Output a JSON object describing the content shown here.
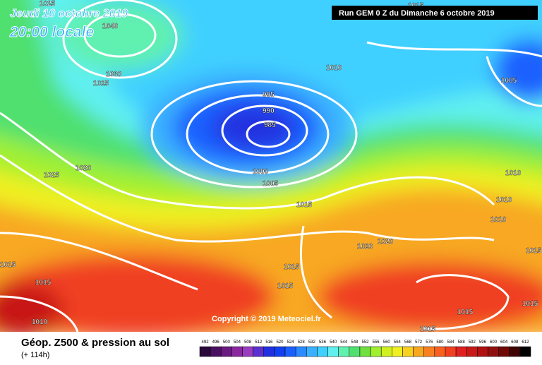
{
  "header": {
    "date": "Jeudi 10 octobre 2019",
    "time": "20:00 locale",
    "run": "Run GEM 0 Z du Dimanche 6 octobre 2019"
  },
  "copyright": "Copyright © 2019 Meteociel.fr",
  "isobars": [
    "1025",
    "1040",
    "1030",
    "1025",
    "1010",
    "1015",
    "1005",
    "995",
    "990",
    "985",
    "1000",
    "1005",
    "1025",
    "1020",
    "1015",
    "1010",
    "1010",
    "1010",
    "1020",
    "1020",
    "1015",
    "1015",
    "1015",
    "1015",
    "1015",
    "1010",
    "1015",
    "1015",
    "1015"
  ],
  "legend": {
    "title": "Géop. Z500 & pression au sol",
    "lead": "(+ 114h)",
    "scale": [
      "492",
      "496",
      "500",
      "504",
      "508",
      "512",
      "516",
      "520",
      "524",
      "528",
      "532",
      "536",
      "540",
      "544",
      "548",
      "552",
      "556",
      "560",
      "564",
      "568",
      "572",
      "576",
      "580",
      "584",
      "588",
      "592",
      "596",
      "600",
      "604",
      "608",
      "612"
    ],
    "colors": [
      "#2a0a3a",
      "#4a1060",
      "#6a1a80",
      "#8a28a0",
      "#9a3cc0",
      "#5a30d0",
      "#2030e0",
      "#1040f0",
      "#1a60ff",
      "#2a8aff",
      "#3ab0ff",
      "#40d0ff",
      "#60f0f0",
      "#60f0b0",
      "#50e070",
      "#70e040",
      "#a0f030",
      "#d0f020",
      "#f0f020",
      "#f8d020",
      "#f8a820",
      "#f88020",
      "#f86020",
      "#f04020",
      "#e02020",
      "#c81818",
      "#b01010",
      "#901010",
      "#700808",
      "#400404",
      "#000000"
    ]
  }
}
